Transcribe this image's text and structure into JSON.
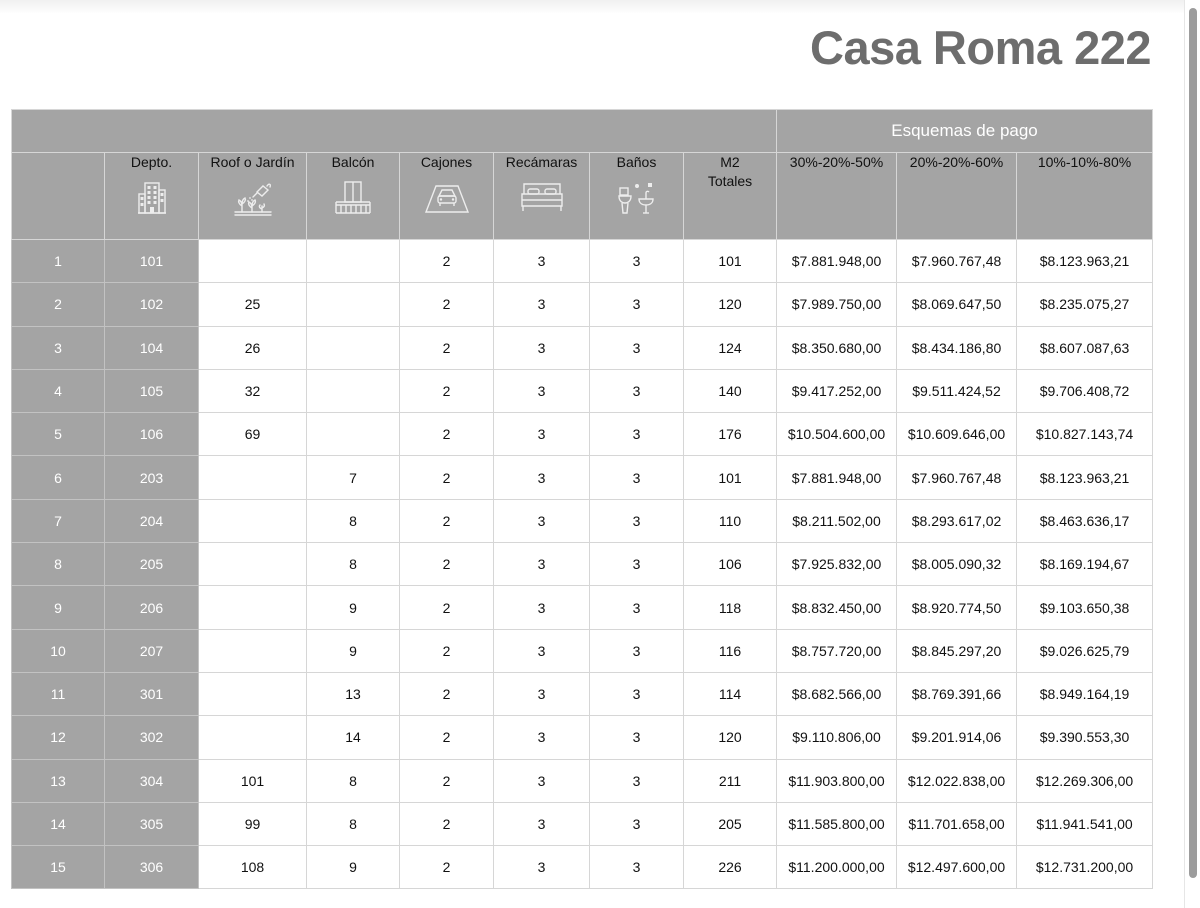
{
  "title": "Casa Roma 222",
  "group_header": "Esquemas de pago",
  "columns": {
    "depto": "Depto.",
    "roof": "Roof o Jardín",
    "balcon": "Balcón",
    "cajones": "Cajones",
    "recamaras": "Recámaras",
    "banos": "Baños",
    "m2_line1": "M2",
    "m2_line2": "Totales",
    "plan1": "30%-20%-50%",
    "plan2": "20%-20%-60%",
    "plan3": "10%-10%-80%"
  },
  "icons": {
    "depto": "building-icon",
    "roof": "garden-watering-icon",
    "balcon": "balcony-icon",
    "cajones": "parking-car-icon",
    "recamaras": "bed-icon",
    "banos": "bathroom-icon"
  },
  "colors": {
    "header_bg": "#a4a4a4",
    "header_text": "#ffffff",
    "title": "#6d6d6d"
  },
  "rows": [
    {
      "n": "1",
      "depto": "101",
      "roof": "",
      "balcon": "",
      "cajones": "2",
      "recamaras": "3",
      "banos": "3",
      "m2": "101",
      "p1": "$7.881.948,00",
      "p2": "$7.960.767,48",
      "p3": "$8.123.963,21"
    },
    {
      "n": "2",
      "depto": "102",
      "roof": "25",
      "balcon": "",
      "cajones": "2",
      "recamaras": "3",
      "banos": "3",
      "m2": "120",
      "p1": "$7.989.750,00",
      "p2": "$8.069.647,50",
      "p3": "$8.235.075,27"
    },
    {
      "n": "3",
      "depto": "104",
      "roof": "26",
      "balcon": "",
      "cajones": "2",
      "recamaras": "3",
      "banos": "3",
      "m2": "124",
      "p1": "$8.350.680,00",
      "p2": "$8.434.186,80",
      "p3": "$8.607.087,63"
    },
    {
      "n": "4",
      "depto": "105",
      "roof": "32",
      "balcon": "",
      "cajones": "2",
      "recamaras": "3",
      "banos": "3",
      "m2": "140",
      "p1": "$9.417.252,00",
      "p2": "$9.511.424,52",
      "p3": "$9.706.408,72"
    },
    {
      "n": "5",
      "depto": "106",
      "roof": "69",
      "balcon": "",
      "cajones": "2",
      "recamaras": "3",
      "banos": "3",
      "m2": "176",
      "p1": "$10.504.600,00",
      "p2": "$10.609.646,00",
      "p3": "$10.827.143,74"
    },
    {
      "n": "6",
      "depto": "203",
      "roof": "",
      "balcon": "7",
      "cajones": "2",
      "recamaras": "3",
      "banos": "3",
      "m2": "101",
      "p1": "$7.881.948,00",
      "p2": "$7.960.767,48",
      "p3": "$8.123.963,21"
    },
    {
      "n": "7",
      "depto": "204",
      "roof": "",
      "balcon": "8",
      "cajones": "2",
      "recamaras": "3",
      "banos": "3",
      "m2": "110",
      "p1": "$8.211.502,00",
      "p2": "$8.293.617,02",
      "p3": "$8.463.636,17"
    },
    {
      "n": "8",
      "depto": "205",
      "roof": "",
      "balcon": "8",
      "cajones": "2",
      "recamaras": "3",
      "banos": "3",
      "m2": "106",
      "p1": "$7.925.832,00",
      "p2": "$8.005.090,32",
      "p3": "$8.169.194,67"
    },
    {
      "n": "9",
      "depto": "206",
      "roof": "",
      "balcon": "9",
      "cajones": "2",
      "recamaras": "3",
      "banos": "3",
      "m2": "118",
      "p1": "$8.832.450,00",
      "p2": "$8.920.774,50",
      "p3": "$9.103.650,38"
    },
    {
      "n": "10",
      "depto": "207",
      "roof": "",
      "balcon": "9",
      "cajones": "2",
      "recamaras": "3",
      "banos": "3",
      "m2": "116",
      "p1": "$8.757.720,00",
      "p2": "$8.845.297,20",
      "p3": "$9.026.625,79"
    },
    {
      "n": "11",
      "depto": "301",
      "roof": "",
      "balcon": "13",
      "cajones": "2",
      "recamaras": "3",
      "banos": "3",
      "m2": "114",
      "p1": "$8.682.566,00",
      "p2": "$8.769.391,66",
      "p3": "$8.949.164,19"
    },
    {
      "n": "12",
      "depto": "302",
      "roof": "",
      "balcon": "14",
      "cajones": "2",
      "recamaras": "3",
      "banos": "3",
      "m2": "120",
      "p1": "$9.110.806,00",
      "p2": "$9.201.914,06",
      "p3": "$9.390.553,30"
    },
    {
      "n": "13",
      "depto": "304",
      "roof": "101",
      "balcon": "8",
      "cajones": "2",
      "recamaras": "3",
      "banos": "3",
      "m2": "211",
      "p1": "$11.903.800,00",
      "p2": "$12.022.838,00",
      "p3": "$12.269.306,00"
    },
    {
      "n": "14",
      "depto": "305",
      "roof": "99",
      "balcon": "8",
      "cajones": "2",
      "recamaras": "3",
      "banos": "3",
      "m2": "205",
      "p1": "$11.585.800,00",
      "p2": "$11.701.658,00",
      "p3": "$11.941.541,00"
    },
    {
      "n": "15",
      "depto": "306",
      "roof": "108",
      "balcon": "9",
      "cajones": "2",
      "recamaras": "3",
      "banos": "3",
      "m2": "226",
      "p1": "$11.200.000,00",
      "p2": "$12.497.600,00",
      "p3": "$12.731.200,00"
    }
  ]
}
